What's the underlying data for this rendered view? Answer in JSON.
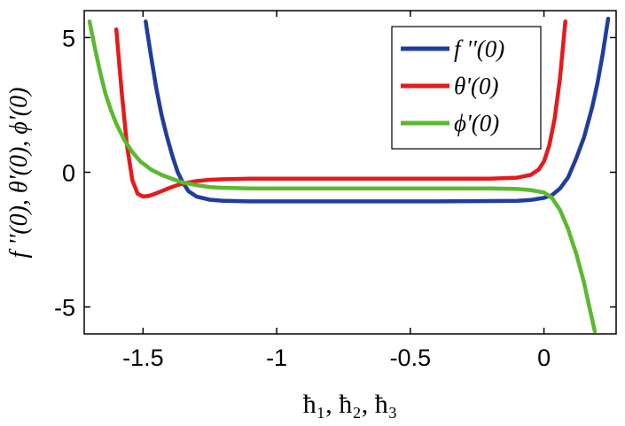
{
  "chart_data": {
    "type": "line",
    "title": "",
    "xlabel": "ħ₁, ħ₂, ħ₃",
    "ylabel": "f ''(0), θ'(0), ϕ'(0)",
    "xlim": [
      -1.72,
      0.27
    ],
    "ylim": [
      -6,
      6
    ],
    "xticks": [
      -1.5,
      -1,
      -0.5,
      0
    ],
    "xtick_labels": [
      "-1.5",
      "-1",
      "-0.5",
      "0"
    ],
    "yticks": [
      5,
      0,
      -5
    ],
    "ytick_labels": [
      "5",
      "0",
      "-5"
    ],
    "legend_position": "top-right",
    "series": [
      {
        "name": "f ''(0)",
        "color": "#1f3d9e",
        "x": [
          -1.49,
          -1.47,
          -1.45,
          -1.43,
          -1.41,
          -1.39,
          -1.37,
          -1.35,
          -1.33,
          -1.3,
          -1.25,
          -1.2,
          -1.1,
          -1.0,
          -0.8,
          -0.6,
          -0.4,
          -0.2,
          -0.1,
          -0.05,
          0.0,
          0.03,
          0.06,
          0.09,
          0.12,
          0.15,
          0.18,
          0.2,
          0.22,
          0.24
        ],
        "y": [
          5.6,
          4.3,
          3.1,
          2.1,
          1.3,
          0.6,
          0.0,
          -0.4,
          -0.7,
          -0.9,
          -1.02,
          -1.06,
          -1.08,
          -1.08,
          -1.08,
          -1.08,
          -1.08,
          -1.07,
          -1.06,
          -1.03,
          -0.95,
          -0.85,
          -0.6,
          -0.2,
          0.5,
          1.3,
          2.4,
          3.3,
          4.4,
          5.7
        ]
      },
      {
        "name": "θ'(0)",
        "color": "#e41a1c",
        "x": [
          -1.6,
          -1.58,
          -1.56,
          -1.54,
          -1.52,
          -1.5,
          -1.48,
          -1.46,
          -1.43,
          -1.4,
          -1.37,
          -1.33,
          -1.3,
          -1.25,
          -1.2,
          -1.1,
          -1.0,
          -0.8,
          -0.5,
          -0.2,
          -0.1,
          -0.05,
          -0.02,
          0.0,
          0.02,
          0.04,
          0.06,
          0.08
        ],
        "y": [
          5.3,
          3.0,
          1.0,
          -0.3,
          -0.8,
          -0.9,
          -0.88,
          -0.82,
          -0.7,
          -0.58,
          -0.47,
          -0.38,
          -0.33,
          -0.28,
          -0.26,
          -0.24,
          -0.24,
          -0.24,
          -0.24,
          -0.24,
          -0.2,
          -0.1,
          0.1,
          0.4,
          1.0,
          2.0,
          3.5,
          5.6
        ]
      },
      {
        "name": "ϕ'(0)",
        "color": "#5cb82e",
        "x": [
          -1.7,
          -1.68,
          -1.66,
          -1.64,
          -1.62,
          -1.6,
          -1.57,
          -1.54,
          -1.51,
          -1.47,
          -1.43,
          -1.39,
          -1.35,
          -1.3,
          -1.25,
          -1.2,
          -1.1,
          -1.0,
          -0.8,
          -0.5,
          -0.2,
          -0.1,
          -0.05,
          0.0,
          0.03,
          0.06,
          0.09,
          0.12,
          0.15,
          0.17,
          0.19
        ],
        "y": [
          5.6,
          4.6,
          3.7,
          2.9,
          2.3,
          1.8,
          1.2,
          0.75,
          0.4,
          0.1,
          -0.1,
          -0.25,
          -0.38,
          -0.48,
          -0.55,
          -0.58,
          -0.6,
          -0.6,
          -0.6,
          -0.6,
          -0.6,
          -0.62,
          -0.66,
          -0.75,
          -0.95,
          -1.4,
          -2.1,
          -3.0,
          -4.1,
          -5.0,
          -5.9
        ]
      }
    ]
  }
}
